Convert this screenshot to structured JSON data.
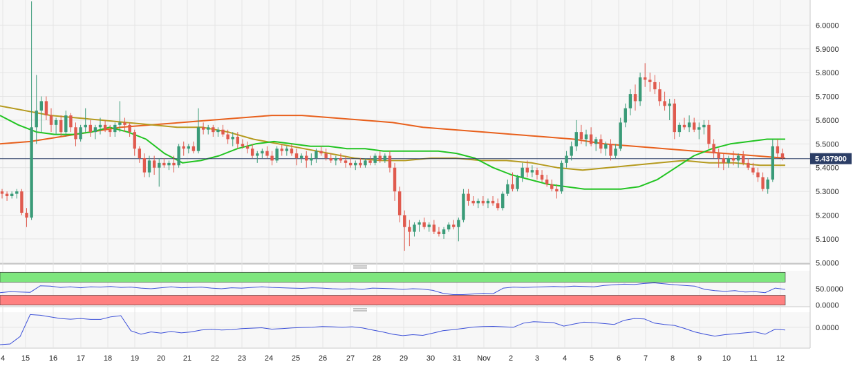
{
  "chart_data": [
    {
      "type": "candlestick",
      "panel": "price",
      "y_ticks": [
        "6.0000",
        "5.9000",
        "5.8000",
        "5.7000",
        "5.6000",
        "5.5000",
        "5.4000",
        "5.3000",
        "5.2000",
        "5.1000",
        "5.0000"
      ],
      "y_tick_values": [
        6.0,
        5.9,
        5.8,
        5.7,
        5.6,
        5.5,
        5.4,
        5.3,
        5.2,
        5.1,
        5.0
      ],
      "ylim": [
        4.995,
        6.1
      ],
      "current_price": 5.4379,
      "current_price_label": "5.437900",
      "x_categories": [
        "4",
        "15",
        "16",
        "17",
        "18",
        "19",
        "20",
        "21",
        "22",
        "23",
        "24",
        "25",
        "26",
        "27",
        "28",
        "29",
        "30",
        "31",
        "Nov",
        "2",
        "3",
        "4",
        "5",
        "6",
        "7",
        "8",
        "9",
        "10",
        "11",
        "12"
      ],
      "candles": [
        [
          5.3,
          5.31,
          5.27,
          5.29
        ],
        [
          5.29,
          5.3,
          5.26,
          5.28
        ],
        [
          5.28,
          5.3,
          5.27,
          5.29
        ],
        [
          5.29,
          5.31,
          5.27,
          5.3
        ],
        [
          5.3,
          5.31,
          5.2,
          5.21
        ],
        [
          5.21,
          5.23,
          5.15,
          5.19
        ],
        [
          5.19,
          6.1,
          5.18,
          5.57
        ],
        [
          5.57,
          5.79,
          5.5,
          5.64
        ],
        [
          5.64,
          5.7,
          5.55,
          5.68
        ],
        [
          5.68,
          5.7,
          5.6,
          5.62
        ],
        [
          5.62,
          5.65,
          5.55,
          5.58
        ],
        [
          5.58,
          5.61,
          5.54,
          5.6
        ],
        [
          5.6,
          5.62,
          5.53,
          5.55
        ],
        [
          5.55,
          5.64,
          5.53,
          5.62
        ],
        [
          5.62,
          5.63,
          5.55,
          5.57
        ],
        [
          5.57,
          5.59,
          5.49,
          5.52
        ],
        [
          5.52,
          5.58,
          5.51,
          5.57
        ],
        [
          5.57,
          5.65,
          5.55,
          5.58
        ],
        [
          5.58,
          5.6,
          5.53,
          5.55
        ],
        [
          5.55,
          5.58,
          5.52,
          5.57
        ],
        [
          5.57,
          5.61,
          5.54,
          5.58
        ],
        [
          5.58,
          5.6,
          5.55,
          5.56
        ],
        [
          5.56,
          5.58,
          5.53,
          5.55
        ],
        [
          5.55,
          5.59,
          5.53,
          5.58
        ],
        [
          5.58,
          5.68,
          5.55,
          5.59
        ],
        [
          5.59,
          5.61,
          5.55,
          5.58
        ],
        [
          5.58,
          5.59,
          5.53,
          5.55
        ],
        [
          5.55,
          5.56,
          5.45,
          5.48
        ],
        [
          5.48,
          5.49,
          5.42,
          5.44
        ],
        [
          5.44,
          5.46,
          5.36,
          5.38
        ],
        [
          5.38,
          5.45,
          5.36,
          5.43
        ],
        [
          5.43,
          5.45,
          5.37,
          5.4
        ],
        [
          5.4,
          5.44,
          5.32,
          5.42
        ],
        [
          5.42,
          5.44,
          5.4,
          5.41
        ],
        [
          5.41,
          5.43,
          5.39,
          5.42
        ],
        [
          5.42,
          5.45,
          5.38,
          5.41
        ],
        [
          5.41,
          5.5,
          5.4,
          5.49
        ],
        [
          5.49,
          5.51,
          5.45,
          5.48
        ],
        [
          5.48,
          5.5,
          5.46,
          5.49
        ],
        [
          5.49,
          5.51,
          5.46,
          5.47
        ],
        [
          5.47,
          5.65,
          5.46,
          5.57
        ],
        [
          5.57,
          5.59,
          5.54,
          5.56
        ],
        [
          5.56,
          5.58,
          5.54,
          5.57
        ],
        [
          5.57,
          5.58,
          5.53,
          5.55
        ],
        [
          5.55,
          5.57,
          5.53,
          5.56
        ],
        [
          5.56,
          5.58,
          5.53,
          5.54
        ],
        [
          5.54,
          5.56,
          5.5,
          5.52
        ],
        [
          5.52,
          5.55,
          5.49,
          5.53
        ],
        [
          5.53,
          5.55,
          5.48,
          5.5
        ],
        [
          5.5,
          5.52,
          5.48,
          5.49
        ],
        [
          5.49,
          5.51,
          5.46,
          5.48
        ],
        [
          5.48,
          5.5,
          5.44,
          5.45
        ],
        [
          5.45,
          5.47,
          5.42,
          5.46
        ],
        [
          5.46,
          5.48,
          5.44,
          5.47
        ],
        [
          5.47,
          5.49,
          5.44,
          5.45
        ],
        [
          5.45,
          5.47,
          5.41,
          5.43
        ],
        [
          5.43,
          5.49,
          5.42,
          5.48
        ],
        [
          5.48,
          5.5,
          5.45,
          5.47
        ],
        [
          5.47,
          5.49,
          5.45,
          5.48
        ],
        [
          5.48,
          5.5,
          5.45,
          5.46
        ],
        [
          5.46,
          5.48,
          5.41,
          5.44
        ],
        [
          5.44,
          5.46,
          5.42,
          5.45
        ],
        [
          5.45,
          5.47,
          5.4,
          5.43
        ],
        [
          5.43,
          5.46,
          5.41,
          5.44
        ],
        [
          5.44,
          5.48,
          5.42,
          5.47
        ],
        [
          5.47,
          5.49,
          5.45,
          5.46
        ],
        [
          5.46,
          5.48,
          5.43,
          5.44
        ],
        [
          5.44,
          5.46,
          5.42,
          5.43
        ],
        [
          5.43,
          5.45,
          5.41,
          5.44
        ],
        [
          5.44,
          5.46,
          5.42,
          5.43
        ],
        [
          5.43,
          5.45,
          5.4,
          5.42
        ],
        [
          5.42,
          5.44,
          5.4,
          5.41
        ],
        [
          5.41,
          5.43,
          5.39,
          5.42
        ],
        [
          5.42,
          5.44,
          5.4,
          5.41
        ],
        [
          5.41,
          5.44,
          5.4,
          5.43
        ],
        [
          5.43,
          5.45,
          5.41,
          5.42
        ],
        [
          5.42,
          5.46,
          5.41,
          5.45
        ],
        [
          5.45,
          5.47,
          5.42,
          5.43
        ],
        [
          5.43,
          5.46,
          5.42,
          5.45
        ],
        [
          5.45,
          5.47,
          5.38,
          5.4
        ],
        [
          5.4,
          5.42,
          5.26,
          5.3
        ],
        [
          5.3,
          5.32,
          5.17,
          5.2
        ],
        [
          5.2,
          5.22,
          5.05,
          5.15
        ],
        [
          5.15,
          5.18,
          5.07,
          5.13
        ],
        [
          5.13,
          5.17,
          5.11,
          5.16
        ],
        [
          5.16,
          5.18,
          5.13,
          5.17
        ],
        [
          5.17,
          5.19,
          5.14,
          5.15
        ],
        [
          5.15,
          5.17,
          5.13,
          5.16
        ],
        [
          5.16,
          5.18,
          5.12,
          5.13
        ],
        [
          5.13,
          5.15,
          5.11,
          5.12
        ],
        [
          5.12,
          5.15,
          5.1,
          5.14
        ],
        [
          5.14,
          5.17,
          5.13,
          5.16
        ],
        [
          5.16,
          5.18,
          5.14,
          5.15
        ],
        [
          5.15,
          5.19,
          5.09,
          5.18
        ],
        [
          5.18,
          5.31,
          5.17,
          5.29
        ],
        [
          5.29,
          5.31,
          5.24,
          5.26
        ],
        [
          5.26,
          5.28,
          5.24,
          5.25
        ],
        [
          5.25,
          5.27,
          5.23,
          5.26
        ],
        [
          5.26,
          5.28,
          5.24,
          5.25
        ],
        [
          5.25,
          5.27,
          5.23,
          5.26
        ],
        [
          5.26,
          5.28,
          5.24,
          5.25
        ],
        [
          5.25,
          5.27,
          5.22,
          5.23
        ],
        [
          5.23,
          5.3,
          5.22,
          5.29
        ],
        [
          5.29,
          5.35,
          5.28,
          5.33
        ],
        [
          5.33,
          5.38,
          5.3,
          5.31
        ],
        [
          5.31,
          5.37,
          5.3,
          5.36
        ],
        [
          5.36,
          5.42,
          5.34,
          5.4
        ],
        [
          5.4,
          5.43,
          5.36,
          5.38
        ],
        [
          5.38,
          5.41,
          5.36,
          5.39
        ],
        [
          5.39,
          5.4,
          5.35,
          5.37
        ],
        [
          5.37,
          5.39,
          5.34,
          5.35
        ],
        [
          5.35,
          5.37,
          5.32,
          5.33
        ],
        [
          5.33,
          5.35,
          5.3,
          5.31
        ],
        [
          5.31,
          5.33,
          5.27,
          5.3
        ],
        [
          5.3,
          5.43,
          5.29,
          5.42
        ],
        [
          5.42,
          5.47,
          5.4,
          5.45
        ],
        [
          5.45,
          5.51,
          5.43,
          5.49
        ],
        [
          5.49,
          5.6,
          5.47,
          5.55
        ],
        [
          5.55,
          5.58,
          5.5,
          5.52
        ],
        [
          5.52,
          5.56,
          5.49,
          5.54
        ],
        [
          5.54,
          5.57,
          5.49,
          5.5
        ],
        [
          5.5,
          5.53,
          5.47,
          5.52
        ],
        [
          5.52,
          5.54,
          5.46,
          5.48
        ],
        [
          5.48,
          5.51,
          5.45,
          5.5
        ],
        [
          5.5,
          5.52,
          5.43,
          5.45
        ],
        [
          5.45,
          5.5,
          5.44,
          5.48
        ],
        [
          5.48,
          5.61,
          5.47,
          5.59
        ],
        [
          5.59,
          5.67,
          5.57,
          5.65
        ],
        [
          5.65,
          5.73,
          5.62,
          5.71
        ],
        [
          5.71,
          5.75,
          5.64,
          5.68
        ],
        [
          5.68,
          5.8,
          5.66,
          5.78
        ],
        [
          5.78,
          5.84,
          5.74,
          5.77
        ],
        [
          5.77,
          5.8,
          5.72,
          5.76
        ],
        [
          5.76,
          5.79,
          5.71,
          5.73
        ],
        [
          5.73,
          5.76,
          5.66,
          5.68
        ],
        [
          5.68,
          5.72,
          5.64,
          5.66
        ],
        [
          5.66,
          5.69,
          5.6,
          5.67
        ],
        [
          5.67,
          5.69,
          5.52,
          5.55
        ],
        [
          5.55,
          5.59,
          5.53,
          5.58
        ],
        [
          5.58,
          5.61,
          5.56,
          5.57
        ],
        [
          5.57,
          5.62,
          5.55,
          5.59
        ],
        [
          5.59,
          5.61,
          5.55,
          5.56
        ],
        [
          5.56,
          5.59,
          5.52,
          5.57
        ],
        [
          5.57,
          5.6,
          5.54,
          5.58
        ],
        [
          5.58,
          5.6,
          5.48,
          5.5
        ],
        [
          5.5,
          5.52,
          5.44,
          5.46
        ],
        [
          5.46,
          5.48,
          5.4,
          5.44
        ],
        [
          5.44,
          5.46,
          5.39,
          5.42
        ],
        [
          5.42,
          5.45,
          5.4,
          5.44
        ],
        [
          5.44,
          5.47,
          5.41,
          5.43
        ],
        [
          5.43,
          5.46,
          5.4,
          5.45
        ],
        [
          5.45,
          5.47,
          5.41,
          5.42
        ],
        [
          5.42,
          5.44,
          5.39,
          5.4
        ],
        [
          5.4,
          5.42,
          5.37,
          5.38
        ],
        [
          5.38,
          5.4,
          5.34,
          5.36
        ],
        [
          5.36,
          5.38,
          5.3,
          5.31
        ],
        [
          5.31,
          5.36,
          5.29,
          5.35
        ],
        [
          5.35,
          5.52,
          5.34,
          5.49
        ],
        [
          5.49,
          5.52,
          5.44,
          5.46
        ],
        [
          5.46,
          5.48,
          5.43,
          5.44
        ]
      ],
      "ma_lines": [
        {
          "color": "#e8601c",
          "values": [
            5.5,
            5.51,
            5.53,
            5.55,
            5.57,
            5.58,
            5.59,
            5.6,
            5.61,
            5.62,
            5.62,
            5.61,
            5.6,
            5.59,
            5.57,
            5.56,
            5.55,
            5.54,
            5.53,
            5.52,
            5.5,
            5.49,
            5.48,
            5.47,
            5.46,
            5.45,
            5.44
          ]
        },
        {
          "color": "#b59a1e",
          "values": [
            5.66,
            5.64,
            5.62,
            5.61,
            5.6,
            5.59,
            5.58,
            5.57,
            5.57,
            5.55,
            5.52,
            5.5,
            5.48,
            5.46,
            5.44,
            5.43,
            5.43,
            5.44,
            5.44,
            5.43,
            5.43,
            5.42,
            5.4,
            5.39,
            5.4,
            5.41,
            5.42,
            5.43,
            5.42,
            5.42,
            5.41,
            5.41
          ]
        },
        {
          "color": "#22c422",
          "values": [
            5.62,
            5.58,
            5.55,
            5.54,
            5.54,
            5.55,
            5.57,
            5.55,
            5.52,
            5.46,
            5.42,
            5.43,
            5.45,
            5.48,
            5.5,
            5.51,
            5.5,
            5.49,
            5.49,
            5.48,
            5.48,
            5.47,
            5.47,
            5.47,
            5.47,
            5.46,
            5.44,
            5.4,
            5.37,
            5.35,
            5.33,
            5.32,
            5.31,
            5.31,
            5.31,
            5.32,
            5.35,
            5.4,
            5.45,
            5.48,
            5.5,
            5.51,
            5.52,
            5.52
          ]
        }
      ]
    },
    {
      "type": "line",
      "panel": "oscillator-1",
      "y_ticks": [
        "50.0000",
        "0.0000"
      ],
      "y_tick_values": [
        50,
        0
      ],
      "ylim": [
        -5,
        105
      ],
      "overbought_zone": [
        70,
        100
      ],
      "oversold_zone": [
        0,
        30
      ],
      "colors": {
        "overbought": "#7ee67e",
        "oversold": "#ff8080",
        "line": "#3b4fd8"
      },
      "values": [
        38,
        41,
        40,
        39,
        59,
        58,
        54,
        56,
        53,
        56,
        55,
        57,
        54,
        55,
        52,
        50,
        53,
        56,
        53,
        54,
        55,
        52,
        50,
        53,
        52,
        54,
        56,
        54,
        53,
        52,
        51,
        53,
        52,
        50,
        49,
        50,
        48,
        52,
        51,
        50,
        48,
        50,
        49,
        45,
        36,
        32,
        32,
        34,
        36,
        35,
        52,
        55,
        54,
        55,
        56,
        57,
        56,
        58,
        57,
        56,
        60,
        62,
        64,
        63,
        66,
        68,
        65,
        62,
        60,
        58,
        48,
        44,
        42,
        44,
        40,
        41,
        38,
        52,
        48
      ]
    },
    {
      "type": "line",
      "panel": "oscillator-2",
      "y_ticks": [
        "0.0000"
      ],
      "y_tick_values": [
        0
      ],
      "ylim": [
        -0.09,
        0.065
      ],
      "colors": {
        "line": "#3b4fd8"
      },
      "values": [
        -0.075,
        -0.072,
        -0.04,
        0.055,
        0.052,
        0.045,
        0.038,
        0.035,
        0.038,
        0.034,
        0.034,
        0.045,
        0.05,
        -0.015,
        -0.03,
        -0.02,
        -0.025,
        -0.018,
        -0.024,
        -0.02,
        -0.012,
        -0.008,
        -0.012,
        -0.01,
        -0.006,
        -0.004,
        -0.002,
        -0.008,
        -0.006,
        -0.003,
        -0.001,
        0.0,
        0.003,
        0.002,
        0.0,
        0.002,
        -0.003,
        -0.012,
        -0.02,
        -0.03,
        -0.036,
        -0.032,
        -0.035,
        -0.025,
        -0.015,
        -0.01,
        -0.005,
        0.001,
        0.003,
        0.004,
        0.002,
        0.0,
        0.018,
        0.024,
        0.022,
        0.02,
        0.005,
        0.014,
        0.022,
        0.02,
        0.016,
        0.012,
        0.03,
        0.038,
        0.036,
        0.018,
        0.012,
        0.008,
        -0.005,
        -0.02,
        -0.03,
        -0.038,
        -0.032,
        -0.028,
        -0.024,
        -0.02,
        -0.03,
        -0.008,
        -0.012
      ]
    }
  ]
}
